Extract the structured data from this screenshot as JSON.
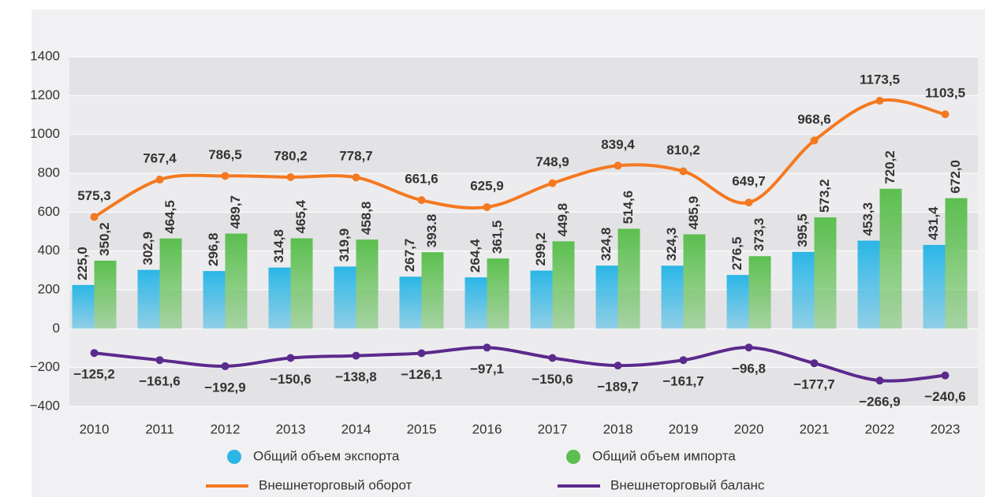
{
  "chart_data": {
    "type": "bar",
    "categories": [
      "2010",
      "2011",
      "2012",
      "2013",
      "2014",
      "2015",
      "2016",
      "2017",
      "2018",
      "2019",
      "2020",
      "2021",
      "2022",
      "2023"
    ],
    "ylim": [
      -400,
      1400
    ],
    "yticks": [
      {
        "value": -400,
        "label": "−400"
      },
      {
        "value": -200,
        "label": "−200"
      },
      0,
      200,
      400,
      600,
      800,
      1000,
      1200,
      1400
    ],
    "grid": true,
    "series": [
      {
        "name": "Общий объем экспорта",
        "type": "bar",
        "color": "#2bb6e6",
        "values": [
          225.0,
          302.9,
          296.8,
          314.8,
          319.9,
          267.7,
          264.4,
          299.2,
          324.8,
          324.3,
          276.5,
          395.5,
          453.3,
          431.4
        ],
        "value_labels": [
          "225,0",
          "302,9",
          "296,8",
          "314,8",
          "319,9",
          "267,7",
          "264,4",
          "299,2",
          "324,8",
          "324,3",
          "276,5",
          "395,5",
          "453,3",
          "431,4"
        ]
      },
      {
        "name": "Общий объем импорта",
        "type": "bar",
        "color": "#5cbf4f",
        "values": [
          350.2,
          464.5,
          489.7,
          465.4,
          458.8,
          393.8,
          361.5,
          449.8,
          514.6,
          485.9,
          373.3,
          573.2,
          720.2,
          672.0
        ],
        "value_labels": [
          "350,2",
          "464,5",
          "489,7",
          "465,4",
          "458,8",
          "393.8",
          "361,5",
          "449,8",
          "514,6",
          "485,9",
          "373,3",
          "573,2",
          "720,2",
          "672,0"
        ]
      },
      {
        "name": "Внешнеторговый оборот",
        "type": "line",
        "color": "#f47920",
        "values": [
          575.3,
          767.4,
          786.5,
          780.2,
          778.7,
          661.6,
          625.9,
          748.9,
          839.4,
          810.2,
          649.7,
          968.6,
          1173.5,
          1103.5
        ],
        "value_labels": [
          "575,3",
          "767,4",
          "786,5",
          "780,2",
          "778,7",
          "661,6",
          "625,9",
          "748,9",
          "839,4",
          "810,2",
          "649,7",
          "968,6",
          "1173,5",
          "1103,5"
        ]
      },
      {
        "name": "Внешнеторговый баланс",
        "type": "line",
        "color": "#5b2a8c",
        "values": [
          -125.2,
          -161.6,
          -192.9,
          -150.6,
          -138.8,
          -126.1,
          -97.1,
          -150.6,
          -189.7,
          -161.7,
          -96.8,
          -177.7,
          -266.9,
          -240.6
        ],
        "value_labels": [
          "−125,2",
          "−161,6",
          "−192,9",
          "−150,6",
          "−138,8",
          "−126,1",
          "−97,1",
          "−150,6",
          "−189,7",
          "−161,7",
          "−96,8",
          "−177,7",
          "−266,9",
          "−240,6"
        ]
      }
    ]
  }
}
